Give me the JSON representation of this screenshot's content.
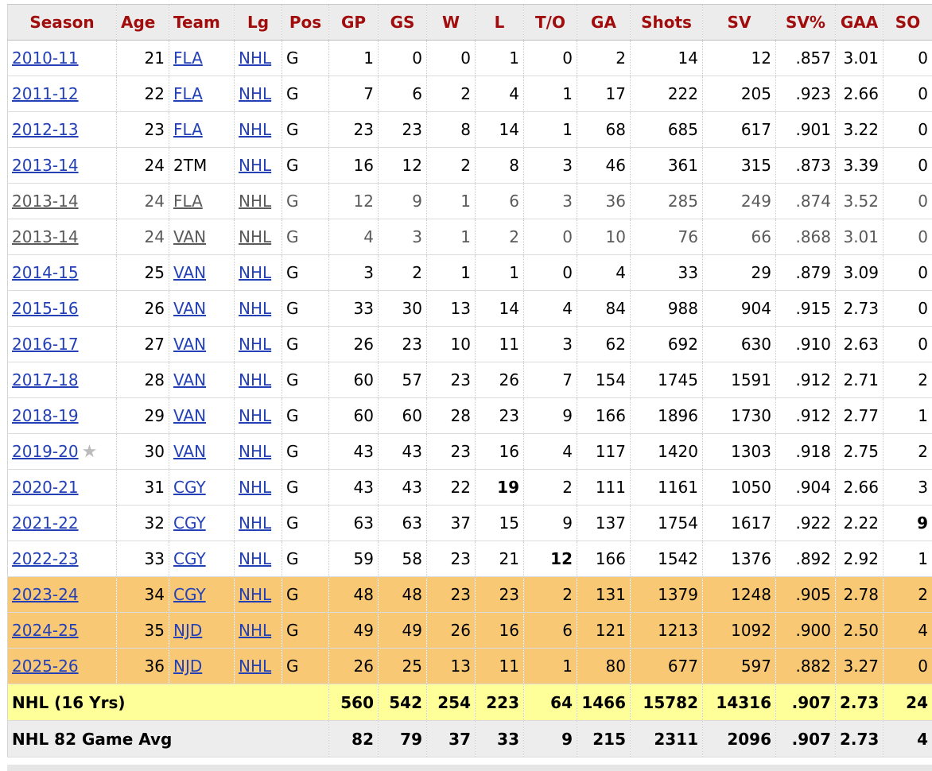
{
  "headers": [
    "Season",
    "Age",
    "Team",
    "Lg",
    "Pos",
    "GP",
    "GS",
    "W",
    "L",
    "T/O",
    "GA",
    "Shots",
    "SV",
    "SV%",
    "GAA",
    "SO"
  ],
  "rows": [
    {
      "season": "2010-11",
      "age": "21",
      "team": "FLA",
      "lg": "NHL",
      "pos": "G",
      "gp": "1",
      "gs": "0",
      "w": "0",
      "l": "1",
      "to": "0",
      "ga": "2",
      "shots": "14",
      "sv": "12",
      "svp": ".857",
      "gaa": "3.01",
      "so": "0"
    },
    {
      "season": "2011-12",
      "age": "22",
      "team": "FLA",
      "lg": "NHL",
      "pos": "G",
      "gp": "7",
      "gs": "6",
      "w": "2",
      "l": "4",
      "to": "1",
      "ga": "17",
      "shots": "222",
      "sv": "205",
      "svp": ".923",
      "gaa": "2.66",
      "so": "0"
    },
    {
      "season": "2012-13",
      "age": "23",
      "team": "FLA",
      "lg": "NHL",
      "pos": "G",
      "gp": "23",
      "gs": "23",
      "w": "8",
      "l": "14",
      "to": "1",
      "ga": "68",
      "shots": "685",
      "sv": "617",
      "svp": ".901",
      "gaa": "3.22",
      "so": "0"
    },
    {
      "season": "2013-14",
      "age": "24",
      "team": "2TM",
      "team_link": false,
      "lg": "NHL",
      "pos": "G",
      "gp": "16",
      "gs": "12",
      "w": "2",
      "l": "8",
      "to": "3",
      "ga": "46",
      "shots": "361",
      "sv": "315",
      "svp": ".873",
      "gaa": "3.39",
      "so": "0"
    },
    {
      "season": "2013-14",
      "age": "24",
      "team": "FLA",
      "lg": "NHL",
      "pos": "G",
      "gp": "12",
      "gs": "9",
      "w": "1",
      "l": "6",
      "to": "3",
      "ga": "36",
      "shots": "285",
      "sv": "249",
      "svp": ".874",
      "gaa": "3.52",
      "so": "0",
      "partial": true
    },
    {
      "season": "2013-14",
      "age": "24",
      "team": "VAN",
      "lg": "NHL",
      "pos": "G",
      "gp": "4",
      "gs": "3",
      "w": "1",
      "l": "2",
      "to": "0",
      "ga": "10",
      "shots": "76",
      "sv": "66",
      "svp": ".868",
      "gaa": "3.01",
      "so": "0",
      "partial": true
    },
    {
      "season": "2014-15",
      "age": "25",
      "team": "VAN",
      "lg": "NHL",
      "pos": "G",
      "gp": "3",
      "gs": "2",
      "w": "1",
      "l": "1",
      "to": "0",
      "ga": "4",
      "shots": "33",
      "sv": "29",
      "svp": ".879",
      "gaa": "3.09",
      "so": "0"
    },
    {
      "season": "2015-16",
      "age": "26",
      "team": "VAN",
      "lg": "NHL",
      "pos": "G",
      "gp": "33",
      "gs": "30",
      "w": "13",
      "l": "14",
      "to": "4",
      "ga": "84",
      "shots": "988",
      "sv": "904",
      "svp": ".915",
      "gaa": "2.73",
      "so": "0"
    },
    {
      "season": "2016-17",
      "age": "27",
      "team": "VAN",
      "lg": "NHL",
      "pos": "G",
      "gp": "26",
      "gs": "23",
      "w": "10",
      "l": "11",
      "to": "3",
      "ga": "62",
      "shots": "692",
      "sv": "630",
      "svp": ".910",
      "gaa": "2.63",
      "so": "0"
    },
    {
      "season": "2017-18",
      "age": "28",
      "team": "VAN",
      "lg": "NHL",
      "pos": "G",
      "gp": "60",
      "gs": "57",
      "w": "23",
      "l": "26",
      "to": "7",
      "ga": "154",
      "shots": "1745",
      "sv": "1591",
      "svp": ".912",
      "gaa": "2.71",
      "so": "2"
    },
    {
      "season": "2018-19",
      "age": "29",
      "team": "VAN",
      "lg": "NHL",
      "pos": "G",
      "gp": "60",
      "gs": "60",
      "w": "28",
      "l": "23",
      "to": "9",
      "ga": "166",
      "shots": "1896",
      "sv": "1730",
      "svp": ".912",
      "gaa": "2.77",
      "so": "1"
    },
    {
      "season": "2019-20",
      "age": "30",
      "team": "VAN",
      "lg": "NHL",
      "pos": "G",
      "gp": "43",
      "gs": "43",
      "w": "23",
      "l": "16",
      "to": "4",
      "ga": "117",
      "shots": "1420",
      "sv": "1303",
      "svp": ".918",
      "gaa": "2.75",
      "so": "2",
      "star": true
    },
    {
      "season": "2020-21",
      "age": "31",
      "team": "CGY",
      "lg": "NHL",
      "pos": "G",
      "gp": "43",
      "gs": "43",
      "w": "22",
      "l": "19",
      "to": "2",
      "ga": "111",
      "shots": "1161",
      "sv": "1050",
      "svp": ".904",
      "gaa": "2.66",
      "so": "3",
      "bold": [
        "l"
      ]
    },
    {
      "season": "2021-22",
      "age": "32",
      "team": "CGY",
      "lg": "NHL",
      "pos": "G",
      "gp": "63",
      "gs": "63",
      "w": "37",
      "l": "15",
      "to": "9",
      "ga": "137",
      "shots": "1754",
      "sv": "1617",
      "svp": ".922",
      "gaa": "2.22",
      "so": "9",
      "bold": [
        "so"
      ]
    },
    {
      "season": "2022-23",
      "age": "33",
      "team": "CGY",
      "lg": "NHL",
      "pos": "G",
      "gp": "59",
      "gs": "58",
      "w": "23",
      "l": "21",
      "to": "12",
      "ga": "166",
      "shots": "1542",
      "sv": "1376",
      "svp": ".892",
      "gaa": "2.92",
      "so": "1",
      "bold": [
        "to"
      ]
    },
    {
      "season": "2023-24",
      "age": "34",
      "team": "CGY",
      "lg": "NHL",
      "pos": "G",
      "gp": "48",
      "gs": "48",
      "w": "23",
      "l": "23",
      "to": "2",
      "ga": "131",
      "shots": "1379",
      "sv": "1248",
      "svp": ".905",
      "gaa": "2.78",
      "so": "2",
      "highlight": true
    },
    {
      "season": "2024-25",
      "age": "35",
      "team": "NJD",
      "lg": "NHL",
      "pos": "G",
      "gp": "49",
      "gs": "49",
      "w": "26",
      "l": "16",
      "to": "6",
      "ga": "121",
      "shots": "1213",
      "sv": "1092",
      "svp": ".900",
      "gaa": "2.50",
      "so": "4",
      "highlight": true
    },
    {
      "season": "2025-26",
      "age": "36",
      "team": "NJD",
      "lg": "NHL",
      "pos": "G",
      "gp": "26",
      "gs": "25",
      "w": "13",
      "l": "11",
      "to": "1",
      "ga": "80",
      "shots": "677",
      "sv": "597",
      "svp": ".882",
      "gaa": "3.27",
      "so": "0",
      "highlight": true
    }
  ],
  "totals": {
    "label": "NHL (16 Yrs)",
    "gp": "560",
    "gs": "542",
    "w": "254",
    "l": "223",
    "to": "64",
    "ga": "1466",
    "shots": "15782",
    "sv": "14316",
    "svp": ".907",
    "gaa": "2.73",
    "so": "24"
  },
  "avg": {
    "label": "NHL 82 Game Avg",
    "gp": "82",
    "gs": "79",
    "w": "37",
    "l": "33",
    "to": "9",
    "ga": "215",
    "shots": "2311",
    "sv": "2096",
    "svp": ".907",
    "gaa": "2.73",
    "so": "4"
  },
  "icons": {
    "award_star": "star-icon"
  },
  "colors": {
    "header_text": "#a10d0d",
    "link": "#2340b7",
    "highlight_row": "#f8c874",
    "totals_row": "#ffff99"
  }
}
